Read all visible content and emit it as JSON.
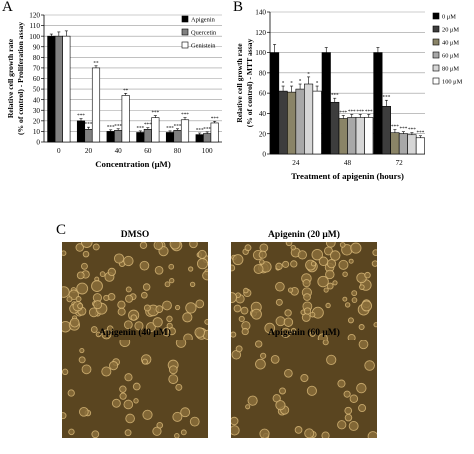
{
  "panels": {
    "a": "A",
    "b": "B",
    "c": "C"
  },
  "chart_data": [
    {
      "type": "bar",
      "id": "A",
      "categories": [
        "0",
        "20",
        "40",
        "60",
        "80",
        "100"
      ],
      "series": [
        {
          "name": "Apigenin",
          "color": "#000000",
          "values": [
            100,
            20,
            10,
            9,
            9,
            7
          ],
          "errors": [
            2,
            2,
            1.5,
            1.5,
            1.5,
            1.5
          ]
        },
        {
          "name": "Quercetin",
          "color": "#808080",
          "values": [
            100,
            12,
            11,
            12,
            11,
            8
          ],
          "errors": [
            4,
            2,
            1.5,
            1.5,
            1.5,
            1.5
          ]
        },
        {
          "name": "Genistein",
          "color": "#ffffff",
          "values": [
            100,
            70,
            44,
            23,
            21,
            18
          ],
          "errors": [
            5,
            2,
            2,
            2,
            2,
            1.5
          ]
        }
      ],
      "significance": [
        [
          "",
          "***",
          "***",
          "***",
          "***",
          "***"
        ],
        [
          "",
          "***",
          "***",
          "***",
          "***",
          "***"
        ],
        [
          "",
          "**",
          "**",
          "***",
          "***",
          "***"
        ]
      ],
      "yticks": [
        "0",
        "10",
        "20",
        "30",
        "40",
        "50",
        "60",
        "70",
        "80",
        "90",
        "100",
        "110",
        "120"
      ],
      "ylim": [
        0,
        120
      ],
      "ylabel_line1": "Relative cell growth rate",
      "ylabel_line2": "(% of control) - Proliferation assay",
      "xlabel": "Concentration (μM)",
      "grid": true,
      "legend_position": "top-right"
    },
    {
      "type": "bar",
      "id": "B",
      "categories": [
        "24",
        "48",
        "72"
      ],
      "series": [
        {
          "name": "0 μM",
          "color": "#000000",
          "values": [
            100,
            100,
            100
          ],
          "errors": [
            8,
            5,
            5
          ]
        },
        {
          "name": "20 μM",
          "color": "#3d3d3d",
          "values": [
            62,
            51,
            47
          ],
          "errors": [
            5,
            4,
            6
          ]
        },
        {
          "name": "40 μM",
          "color": "#8a8467",
          "values": [
            61,
            35,
            21
          ],
          "errors": [
            6,
            3,
            3
          ]
        },
        {
          "name": "60 μM",
          "color": "#a8a8a8",
          "values": [
            64,
            36,
            20
          ],
          "errors": [
            5,
            3,
            2
          ]
        },
        {
          "name": "80 μM",
          "color": "#d6d6d6",
          "values": [
            69,
            36,
            19
          ],
          "errors": [
            7,
            3,
            2
          ]
        },
        {
          "name": "100 μM",
          "color": "#ffffff",
          "values": [
            62,
            36,
            16
          ],
          "errors": [
            5,
            3,
            2
          ]
        }
      ],
      "significance": [
        [
          "",
          "",
          ""
        ],
        [
          "*",
          "***",
          "***"
        ],
        [
          "*",
          "***",
          "***"
        ],
        [
          "*",
          "***",
          "***"
        ],
        [
          "*",
          "***",
          "***"
        ],
        [
          "*",
          "***",
          "***"
        ]
      ],
      "yticks": [
        "0",
        "20",
        "40",
        "60",
        "80",
        "100",
        "120",
        "140"
      ],
      "ylim": [
        0,
        140
      ],
      "ylabel_line1": "Relative cell growth rate",
      "ylabel_line2": "(% of control) - MTT assay",
      "xlabel": "Treatment of apigenin (hours)",
      "grid": true,
      "legend_position": "top-right"
    }
  ],
  "micrographs": [
    {
      "title": "DMSO",
      "density": "high"
    },
    {
      "title": "Apigenin (20 μM)",
      "density": "high"
    },
    {
      "title": "Apigenin (40 μM)",
      "density": "low"
    },
    {
      "title": "Apigenin (60 μM)",
      "density": "low"
    }
  ],
  "colors": {
    "micrograph_bg": "#5a4520",
    "cell_ring": "#d8b878",
    "cell_fill": "#8a6e3a"
  }
}
